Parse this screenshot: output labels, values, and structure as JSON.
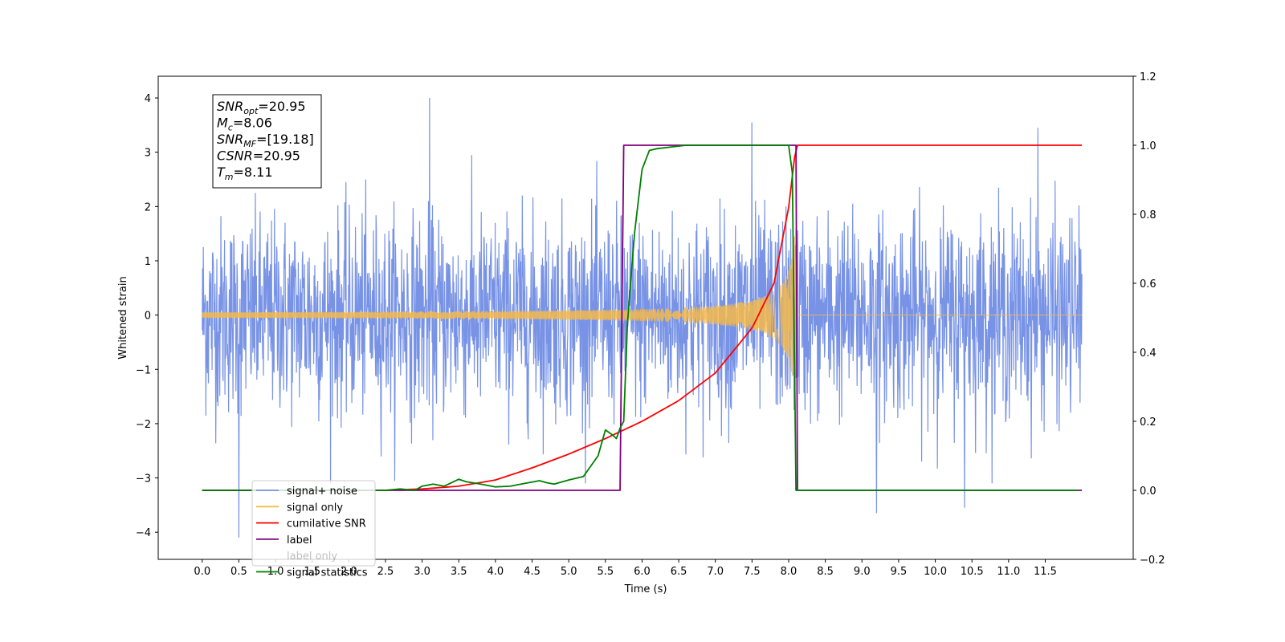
{
  "chart_data": {
    "type": "line",
    "xlabel": "Time (s)",
    "ylabel_left": "Whitened strain",
    "ylabel_right": "",
    "xlim": [
      -0.6,
      12.7
    ],
    "ylim_left": [
      -4.5,
      4.4
    ],
    "ylim_right": [
      -0.2,
      1.2
    ],
    "x_ticks": [
      "0.0",
      "0.5",
      "1.0",
      "1.5",
      "2.0",
      "2.5",
      "3.0",
      "3.5",
      "4.0",
      "4.5",
      "5.0",
      "5.5",
      "6.0",
      "6.5",
      "7.0",
      "7.5",
      "8.0",
      "8.5",
      "9.0",
      "9.5",
      "10.0",
      "10.5",
      "11.0",
      "11.5"
    ],
    "y_ticks_left": [
      "−4",
      "−3",
      "−2",
      "−1",
      "0",
      "1",
      "2",
      "3",
      "4"
    ],
    "y_ticks_right": [
      "−0.2",
      "0.0",
      "0.2",
      "0.4",
      "0.6",
      "0.8",
      "1.0",
      "1.2"
    ],
    "grid": false,
    "legend_location": "lower-left",
    "annotation": [
      {
        "main": "SNR",
        "sub": "opt",
        "rest": "=20.95"
      },
      {
        "main": "M",
        "sub": "c",
        "rest": "=8.06"
      },
      {
        "main": "SNR",
        "sub": "MF",
        "rest": "=[19.18]"
      },
      {
        "main": "CSNR",
        "sub": "",
        "rest": "=20.95"
      },
      {
        "main": "T",
        "sub": "m",
        "rest": "=8.11"
      }
    ],
    "series": [
      {
        "name": "signal+ noise",
        "color": "#7893e6",
        "axis": "left",
        "x_range": [
          0.0,
          12.0
        ],
        "noise_std": 0.9,
        "peaks": [
          [
            0.5,
            -4.1
          ],
          [
            3.1,
            4.0
          ],
          [
            7.5,
            3.55
          ],
          [
            9.2,
            -3.65
          ],
          [
            10.4,
            -3.55
          ],
          [
            11.4,
            3.45
          ]
        ]
      },
      {
        "name": "signal only",
        "color": "#f5b94a",
        "axis": "left",
        "chirp_start": 0.0,
        "merger_time": 8.1,
        "end": 12.0
      },
      {
        "name": "cumilative SNR",
        "color": "#ff0000",
        "axis": "right",
        "x": [
          0.0,
          2.5,
          3.0,
          3.5,
          4.0,
          4.5,
          5.0,
          5.5,
          6.0,
          6.5,
          7.0,
          7.5,
          7.8,
          8.0,
          8.1,
          12.0
        ],
        "y": [
          0.0,
          0.0,
          0.004,
          0.012,
          0.03,
          0.065,
          0.105,
          0.15,
          0.2,
          0.26,
          0.34,
          0.47,
          0.6,
          0.82,
          1.0,
          1.0
        ]
      },
      {
        "name": "label",
        "color": "#800080",
        "axis": "right",
        "x": [
          0.0,
          5.7,
          5.75,
          8.1,
          8.12,
          12.0
        ],
        "y": [
          0.0,
          0.0,
          1.0,
          1.0,
          0.0,
          0.0
        ]
      },
      {
        "name": "label only",
        "color": "#ffffff",
        "axis": "right",
        "x": [],
        "y": []
      },
      {
        "name": "signal statistics",
        "color": "#008000",
        "axis": "right",
        "x": [
          0.0,
          2.5,
          2.7,
          2.9,
          3.0,
          3.15,
          3.3,
          3.5,
          3.6,
          3.8,
          4.0,
          4.2,
          4.4,
          4.6,
          4.7,
          4.8,
          5.0,
          5.2,
          5.3,
          5.4,
          5.5,
          5.6,
          5.65,
          5.7,
          5.75,
          5.8,
          5.85,
          5.9,
          6.0,
          6.1,
          6.2,
          6.4,
          6.6,
          7.0,
          8.0,
          8.05,
          8.1,
          8.12,
          11.95
        ],
        "y": [
          0.0,
          0.0,
          0.004,
          0.0,
          0.012,
          0.018,
          0.012,
          0.032,
          0.025,
          0.018,
          0.01,
          0.012,
          0.02,
          0.028,
          0.022,
          0.018,
          0.03,
          0.04,
          0.07,
          0.1,
          0.175,
          0.16,
          0.15,
          0.18,
          0.2,
          0.48,
          0.62,
          0.75,
          0.93,
          0.985,
          0.99,
          0.995,
          1.0,
          1.0,
          1.0,
          0.92,
          0.0,
          0.0,
          0.0
        ]
      }
    ]
  }
}
